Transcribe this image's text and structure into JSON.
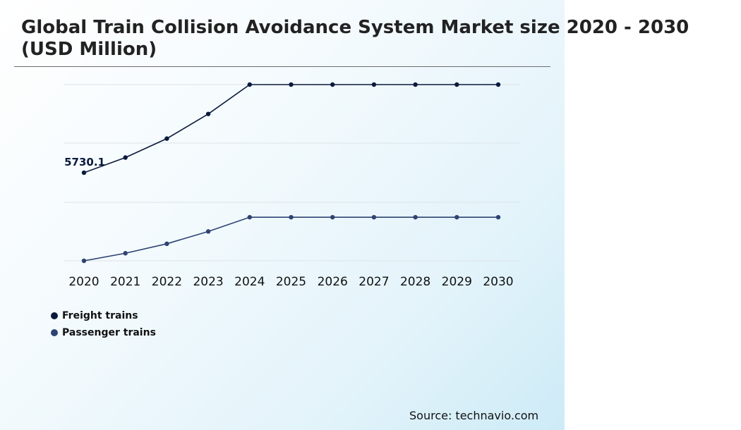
{
  "page": {
    "title": "Global Train Collision Avoidance System Market size 2020 - 2030 (USD Million)",
    "source": "Source: technavio.com"
  },
  "chart_data": {
    "type": "line",
    "title": "Global Train Collision Avoidance System Market size 2020 - 2030 (USD Million)",
    "xlabel": "",
    "ylabel": "",
    "categories": [
      "2020",
      "2021",
      "2022",
      "2023",
      "2024",
      "2025",
      "2026",
      "2027",
      "2028",
      "2029",
      "2030"
    ],
    "series": [
      {
        "name": "Freight trains",
        "color": "#0b1a3d",
        "values": [
          5730.1,
          5890,
          6090,
          6350,
          6660,
          6660,
          6660,
          6660,
          6660,
          6660,
          6660
        ]
      },
      {
        "name": "Passenger trains",
        "color": "#2e4372",
        "values": [
          4800,
          4880,
          4980,
          5110,
          5260,
          5260,
          5260,
          5260,
          5260,
          5260,
          5260
        ]
      }
    ],
    "data_labels": [
      {
        "series": 0,
        "index": 0,
        "text": "5730.1"
      }
    ],
    "ylim": [
      4800,
      6660
    ],
    "grid": true,
    "y_tick_labels": false,
    "legend": "bottom-left"
  }
}
